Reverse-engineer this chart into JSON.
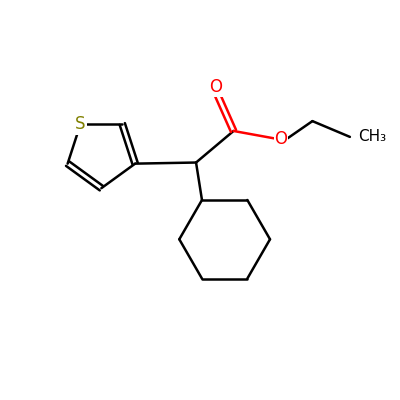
{
  "background_color": "#ffffff",
  "bond_color": "#000000",
  "oxygen_color": "#ff0000",
  "sulfur_color": "#808000",
  "line_width": 1.8,
  "font_size": 12,
  "figsize": [
    4.0,
    4.0
  ],
  "dpi": 100,
  "xlim": [
    0,
    10
  ],
  "ylim": [
    0,
    10
  ]
}
